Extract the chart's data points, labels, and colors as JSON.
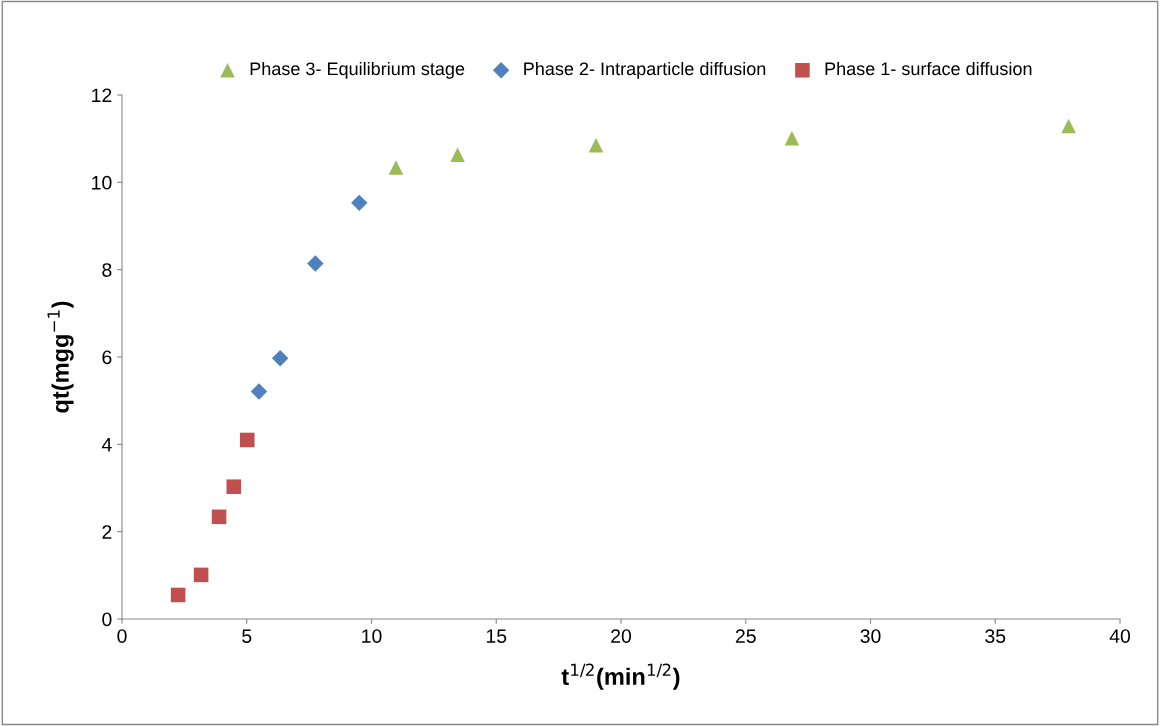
{
  "chart_data": {
    "type": "scatter",
    "xlabel": "t$^{1/2}$(min$^{1/2}$)",
    "ylabel": "qt(mgg$^{−1}$)",
    "series": [
      {
        "name": "Phase 3- Equilibrium stage",
        "color": "#9bbb59",
        "marker": "triangle",
        "x": [
          10.98,
          13.45,
          19.0,
          26.85,
          37.94
        ],
        "values": [
          10.34,
          10.63,
          10.85,
          11.01,
          11.29
        ]
      },
      {
        "name": "Phase 2- Intraparticle diffusion",
        "color": "#4f81bd",
        "marker": "diamond",
        "x": [
          5.49,
          6.34,
          7.75,
          9.51
        ],
        "values": [
          5.21,
          5.97,
          8.14,
          9.53
        ]
      },
      {
        "name": "Phase 1- surface diffusion",
        "color": "#c0504d",
        "marker": "square",
        "x": [
          2.25,
          3.17,
          3.89,
          4.48,
          5.02
        ],
        "values": [
          0.55,
          1.01,
          2.34,
          3.03,
          4.1
        ]
      }
    ],
    "xlim": [
      0,
      40
    ],
    "xticks": [
      0,
      5,
      10,
      15,
      20,
      25,
      30,
      35,
      40
    ],
    "ylim": [
      0,
      12
    ],
    "yticks": [
      0,
      2,
      4,
      6,
      8,
      10,
      12
    ],
    "grid": false,
    "legend": "top"
  }
}
